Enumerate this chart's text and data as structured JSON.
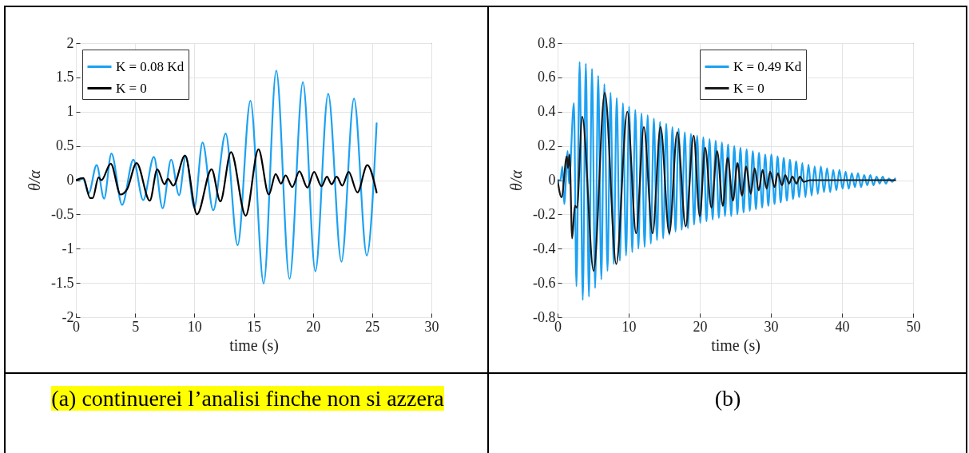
{
  "chart_data": [
    {
      "type": "line",
      "xlabel": "time (s)",
      "ylabel": "θ/α",
      "xlim": [
        0,
        30
      ],
      "xticks": [
        0,
        5,
        10,
        15,
        20,
        25,
        30
      ],
      "ylim": [
        -2,
        2
      ],
      "yticks": [
        -2,
        -1.5,
        -1,
        -0.5,
        0,
        0.5,
        1,
        1.5,
        2
      ],
      "grid": true,
      "legend": "top left",
      "annotations": [
        "(a) continuerei l’analisi finche non si azzera"
      ],
      "series": [
        {
          "name": "K = 0.08 Kd",
          "color": "#1ba1f2",
          "x": [
            0,
            0.6,
            1.08,
            1.75,
            2.38,
            3.0,
            3.9,
            4.85,
            5.68,
            6.58,
            7.32,
            8.04,
            8.71,
            9.27,
            10.0,
            10.69,
            11.59,
            12.64,
            13.65,
            14.73,
            15.85,
            16.91,
            18.03,
            19.16,
            20.21,
            21.29,
            22.41,
            23.47,
            24.55,
            25.38
          ],
          "values": [
            0,
            0.02,
            -0.19,
            0.22,
            -0.27,
            0.39,
            -0.36,
            0.3,
            -0.29,
            0.34,
            -0.41,
            0.3,
            -0.22,
            0.35,
            -0.4,
            0.55,
            -0.44,
            0.68,
            -0.95,
            1.16,
            -1.51,
            1.6,
            -1.44,
            1.43,
            -1.33,
            1.26,
            -1.19,
            1.19,
            -1.1,
            0.83
          ]
        },
        {
          "name": "K = 0",
          "color": "#000000",
          "x": [
            0,
            0.63,
            1.19,
            1.42,
            1.91,
            2.16,
            2.94,
            3.77,
            4.33,
            5.12,
            6.24,
            6.87,
            7.48,
            7.77,
            8.22,
            9.21,
            10.22,
            11.45,
            12.19,
            13.09,
            14.33,
            15.41,
            16.28,
            16.86,
            17.31,
            17.7,
            18.26,
            18.86,
            19.54,
            20.1,
            20.73,
            21.18,
            21.58,
            22.01,
            22.48,
            23.02,
            23.76,
            24.59,
            25.38
          ],
          "values": [
            0,
            0.03,
            -0.26,
            -0.26,
            0.04,
            0,
            0.24,
            -0.21,
            -0.13,
            0.25,
            -0.3,
            0.16,
            -0.06,
            0.02,
            -0.08,
            0.36,
            -0.5,
            0.16,
            -0.31,
            0.41,
            -0.52,
            0.45,
            -0.21,
            0.09,
            -0.05,
            0.07,
            -0.1,
            0.13,
            -0.11,
            0.12,
            -0.09,
            0.05,
            -0.06,
            0.05,
            -0.08,
            0.12,
            -0.18,
            0.22,
            -0.18
          ]
        }
      ]
    },
    {
      "type": "line",
      "xlabel": "time (s)",
      "ylabel": "θ/α",
      "xlim": [
        0,
        50
      ],
      "xticks": [
        0,
        10,
        20,
        30,
        40,
        50
      ],
      "ylim": [
        -0.8,
        0.8
      ],
      "yticks": [
        -0.8,
        -0.6,
        -0.4,
        -0.2,
        0,
        0.2,
        0.4,
        0.6,
        0.8
      ],
      "grid": true,
      "legend": "top",
      "annotations": [
        "(b)"
      ],
      "series": [
        {
          "name": "K = 0.49 Kd",
          "color": "#1ba1f2",
          "x": [
            0,
            0.4,
            0.67,
            0.93,
            1.42,
            1.6,
            2.3,
            2.65,
            3.1,
            3.54,
            3.97,
            4.41,
            4.84,
            5.28,
            5.71,
            6.15,
            6.58,
            7.02,
            7.45,
            7.89,
            8.32,
            8.76,
            9.19,
            9.63,
            10.06,
            10.5,
            10.93,
            11.37,
            11.8,
            12.24,
            12.67,
            13.11,
            13.54,
            13.98,
            14.41,
            14.85,
            15.28,
            15.72,
            16.15,
            16.59,
            17.02,
            17.46,
            17.89,
            18.33,
            18.76,
            19.2,
            19.63,
            20.07,
            20.5,
            20.94,
            21.37,
            21.81,
            22.24,
            22.68,
            23.11,
            23.55,
            23.98,
            24.42,
            24.85,
            25.29,
            25.72,
            26.16,
            26.59,
            27.03,
            27.46,
            27.9,
            28.33,
            28.77,
            29.2,
            29.64,
            30.07,
            30.51,
            30.94,
            31.38,
            31.81,
            32.25,
            32.68,
            33.12,
            33.55,
            33.99,
            34.42,
            34.86,
            35.29,
            35.73,
            36.16,
            36.6,
            37.03,
            37.47,
            37.9,
            38.34,
            38.77,
            39.21,
            39.64,
            40.08,
            40.51,
            40.95,
            41.38,
            41.82,
            42.25,
            42.69,
            43.12,
            43.56,
            43.99,
            44.43,
            44.86,
            45.3,
            45.73,
            46.17,
            46.6,
            47.04,
            47.47
          ],
          "values": [
            0,
            0,
            0.08,
            -0.14,
            0.17,
            -0.02,
            0.45,
            -0.62,
            0.69,
            -0.7,
            0.68,
            -0.68,
            0.65,
            -0.63,
            0.61,
            -0.58,
            0.56,
            -0.53,
            0.51,
            -0.49,
            0.48,
            -0.47,
            0.45,
            -0.44,
            0.43,
            -0.42,
            0.41,
            -0.4,
            0.39,
            -0.39,
            0.38,
            -0.37,
            0.36,
            -0.35,
            0.34,
            -0.34,
            0.33,
            -0.32,
            0.31,
            -0.3,
            0.3,
            -0.29,
            0.28,
            -0.28,
            0.27,
            -0.26,
            0.26,
            -0.25,
            0.25,
            -0.24,
            0.24,
            -0.23,
            0.23,
            -0.22,
            0.22,
            -0.21,
            0.21,
            -0.21,
            0.2,
            -0.2,
            0.19,
            -0.19,
            0.18,
            -0.18,
            0.17,
            -0.17,
            0.16,
            -0.16,
            0.15,
            -0.15,
            0.15,
            -0.14,
            0.14,
            -0.13,
            0.13,
            -0.12,
            0.12,
            -0.11,
            0.11,
            -0.1,
            0.1,
            -0.1,
            0.09,
            -0.09,
            0.08,
            -0.08,
            0.08,
            -0.07,
            0.07,
            -0.07,
            0.06,
            -0.06,
            0.06,
            -0.05,
            0.05,
            -0.05,
            0.04,
            -0.04,
            0.04,
            -0.04,
            0.03,
            -0.03,
            0.03,
            -0.03,
            0.02,
            -0.02,
            0.02,
            -0.02,
            0.01,
            -0.01,
            0.01
          ]
        },
        {
          "name": "K = 0",
          "color": "#1a1a1a",
          "x": [
            0,
            0.56,
            1.3,
            1.46,
            1.68,
            2.05,
            2.43,
            2.72,
            3.47,
            5.07,
            6.64,
            8.25,
            9.81,
            11.04,
            12.13,
            13.36,
            14.48,
            15.71,
            16.83,
            18.02,
            19.14,
            20.0,
            20.75,
            21.64,
            22.43,
            23.25,
            23.92,
            24.66,
            25.3,
            25.93,
            26.53,
            27.16,
            27.72,
            28.28,
            28.84,
            29.4,
            29.89,
            30.52,
            30.97,
            31.57,
            32.01,
            32.57,
            33.02,
            33.62,
            34.07,
            34.63,
            35.56,
            47.5
          ],
          "values": [
            0,
            -0.1,
            0.14,
            0.07,
            0.15,
            -0.34,
            -0.15,
            -0.16,
            0.37,
            -0.53,
            0.51,
            -0.49,
            0.4,
            -0.31,
            0.31,
            -0.31,
            0.31,
            -0.31,
            0.28,
            -0.27,
            0.26,
            -0.21,
            0.19,
            -0.16,
            0.17,
            -0.15,
            0.13,
            -0.12,
            0.1,
            -0.09,
            0.08,
            -0.08,
            0.07,
            -0.06,
            0.06,
            -0.05,
            0.05,
            -0.04,
            0.04,
            -0.03,
            0.03,
            -0.02,
            0.02,
            -0.02,
            0.02,
            -0.01,
            0,
            0
          ]
        }
      ]
    }
  ]
}
